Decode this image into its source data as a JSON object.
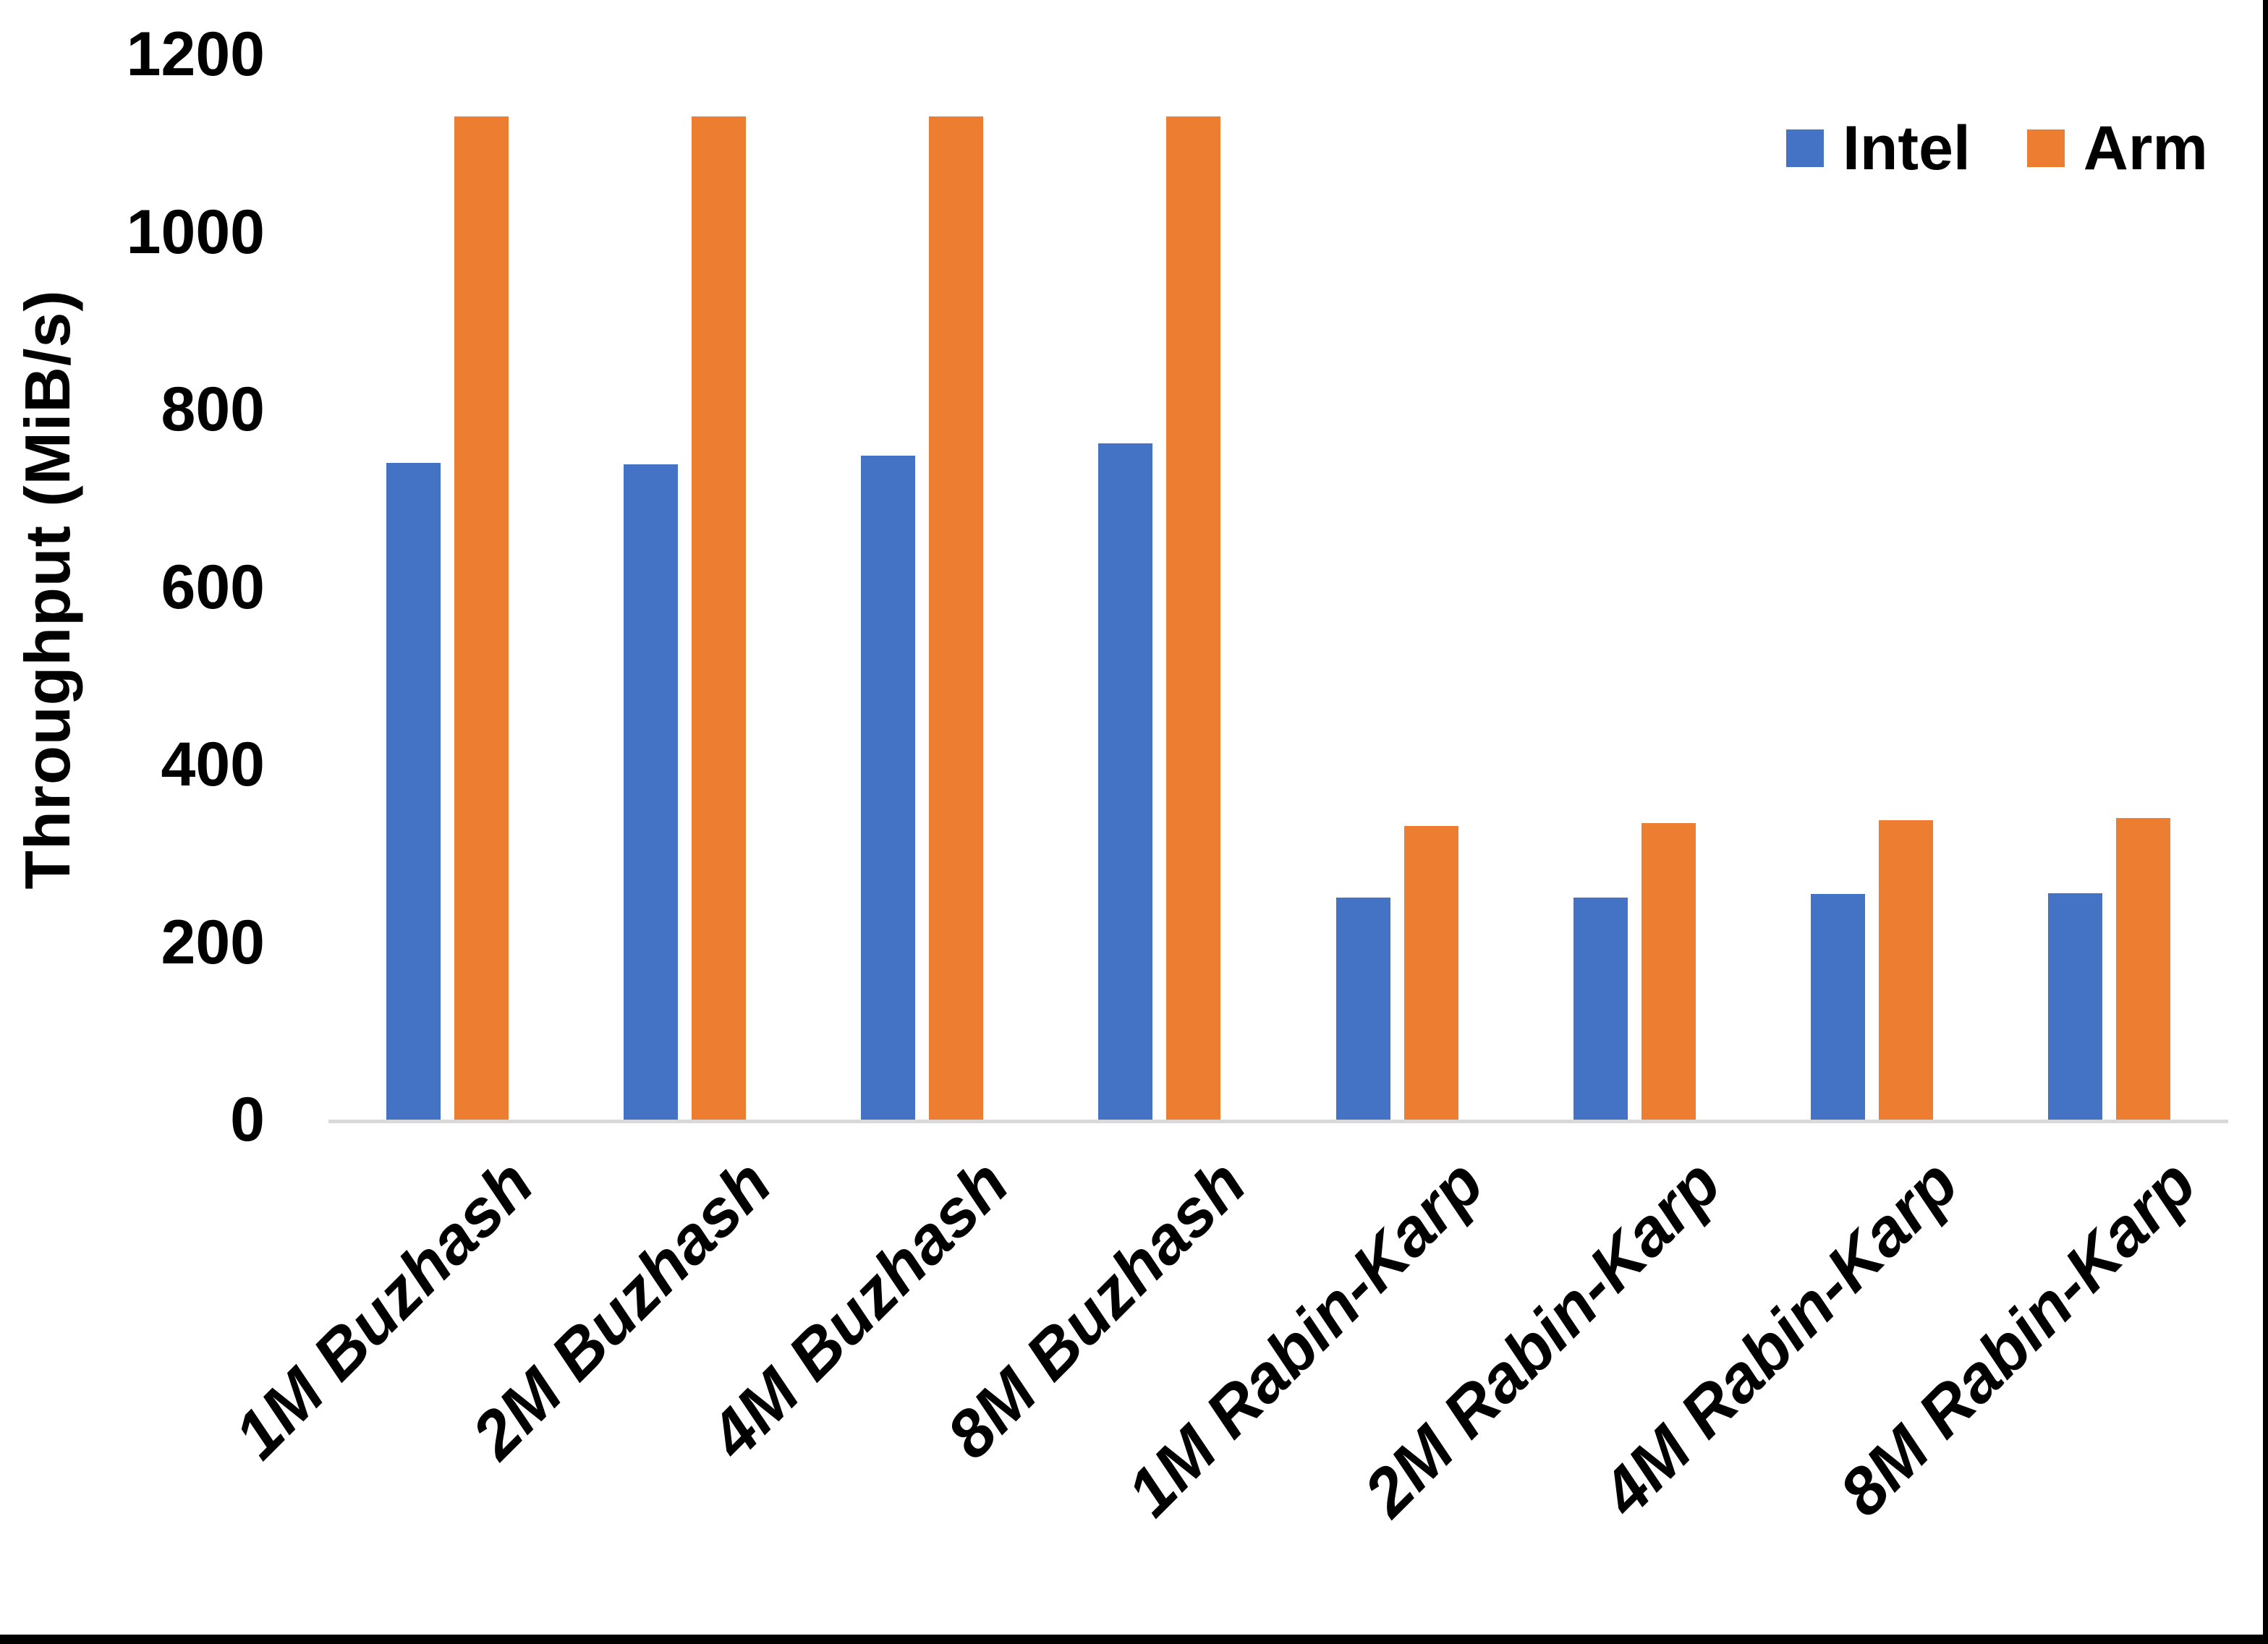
{
  "chart_data": {
    "type": "bar",
    "title": "",
    "xlabel": "",
    "ylabel": "Throughput (MiB/s)",
    "ylim": [
      0,
      1200
    ],
    "yticks": [
      0,
      200,
      400,
      600,
      800,
      1000,
      1200
    ],
    "grid": false,
    "legend_position": "top-right",
    "categories": [
      "1M Buzhash",
      "2M Buzhash",
      "4M Buzhash",
      "8M Buzhash",
      "1M Rabin-Karp",
      "2M Rabin-Karp",
      "4M Rabin-Karp",
      "8M Rabin-Karp"
    ],
    "series": [
      {
        "name": "Intel",
        "color": "#4472C4",
        "values": [
          740,
          738,
          748,
          762,
          250,
          250,
          254,
          255
        ]
      },
      {
        "name": "Arm",
        "color": "#ED7D31",
        "values": [
          1130,
          1130,
          1130,
          1130,
          331,
          334,
          337,
          340
        ]
      }
    ],
    "axis_line_color": "#D9D9D9"
  },
  "frame": {
    "border_color": "#000000"
  }
}
